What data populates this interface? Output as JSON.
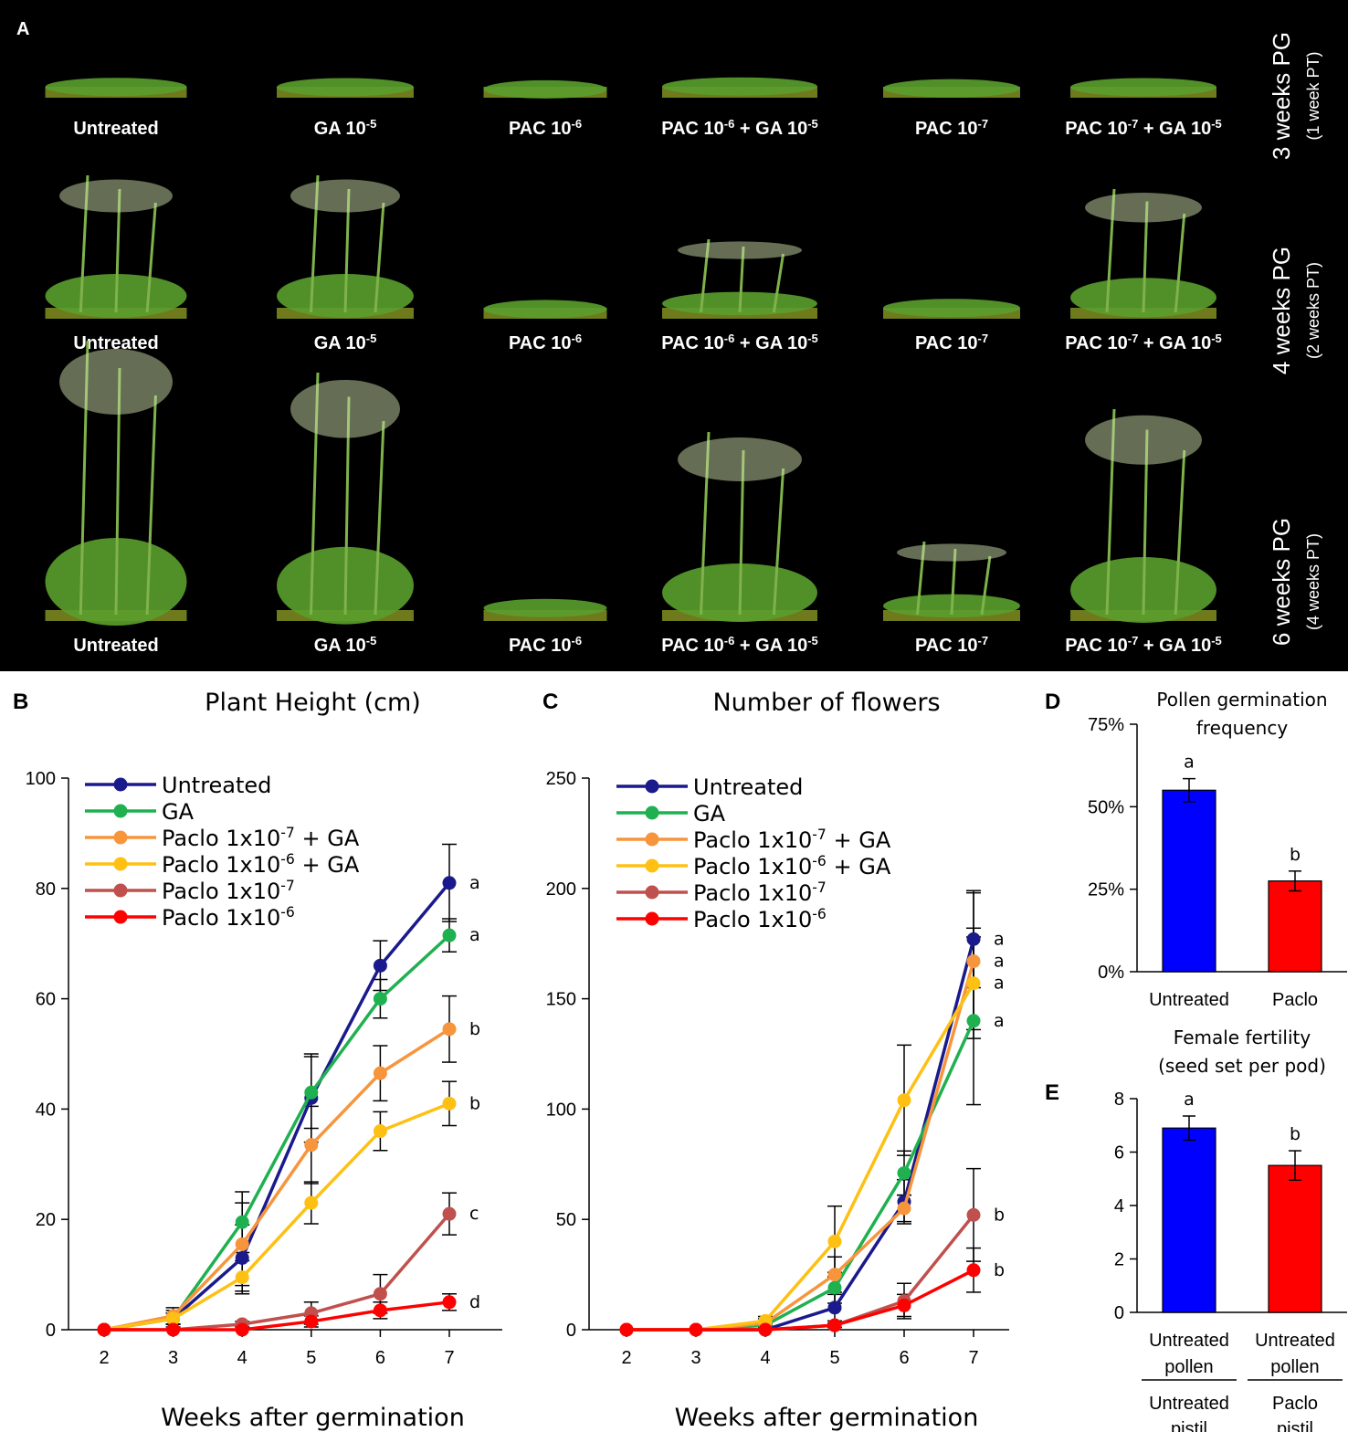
{
  "panel_a": {
    "letter": "A",
    "rows": [
      {
        "label": "3 weeks PG",
        "sub": "(1 week PT)",
        "items": [
          {
            "base": "Untreated"
          },
          {
            "base": "GA 10",
            "sup": "-5"
          },
          {
            "base": "PAC 10",
            "sup": "-6"
          },
          {
            "base": "PAC 10",
            "sup": "-6",
            "base2": " + GA 10",
            "sup2": "-5"
          },
          {
            "base": "PAC 10",
            "sup": "-7"
          },
          {
            "base": "PAC 10",
            "sup": "-7",
            "base2": " + GA 10",
            "sup2": "-5"
          }
        ]
      },
      {
        "label": "4 weeks PG",
        "sub": "(2 weeks PT)",
        "items": [
          {
            "base": "Untreated"
          },
          {
            "base": "GA 10",
            "sup": "-5"
          },
          {
            "base": "PAC 10",
            "sup": "-6"
          },
          {
            "base": "PAC 10",
            "sup": "-6",
            "base2": " + GA  10",
            "sup2": "-5"
          },
          {
            "base": "PAC 10",
            "sup": "-7"
          },
          {
            "base": "PAC 10",
            "sup": "-7",
            "base2": " + GA 10",
            "sup2": "-5"
          }
        ]
      },
      {
        "label": "6 weeks PG",
        "sub": "(4 weeks PT)",
        "items": [
          {
            "base": "Untreated"
          },
          {
            "base": "GA 10",
            "sup": "-5"
          },
          {
            "base": "PAC 10",
            "sup": "-6"
          },
          {
            "base": "PAC 10",
            "sup": "-6",
            "base2": " + GA 10",
            "sup2": "-5"
          },
          {
            "base": "PAC 10",
            "sup": "-7"
          },
          {
            "base": "PAC 10",
            "sup": "-7",
            "base2": " + GA 10",
            "sup2": "-5"
          }
        ]
      }
    ]
  },
  "colors": {
    "untreated": "#1a1a8c",
    "ga": "#1fb050",
    "paclo7ga": "#f7953d",
    "paclo6ga": "#fec013",
    "paclo7": "#c0504d",
    "paclo6": "#ff0000",
    "blue_bar": "#0000ff",
    "red_bar": "#ff0000",
    "plant": "#5a9e2e",
    "pot": "#6e7a1c"
  },
  "chart_data": [
    {
      "id": "B",
      "type": "line",
      "title": "Plant Height (cm)",
      "xlabel": "Weeks after germination",
      "ylabel": "",
      "x": [
        2,
        3,
        4,
        5,
        6,
        7
      ],
      "ylim": [
        0,
        100
      ],
      "yticks": [
        0,
        20,
        40,
        60,
        80,
        100
      ],
      "series": [
        {
          "key": "untreated",
          "name": "Untreated",
          "values": [
            0,
            2,
            13,
            42,
            66,
            81
          ],
          "err": [
            0,
            1,
            6,
            8,
            4.5,
            7
          ],
          "sig": "a"
        },
        {
          "key": "ga",
          "name": "GA",
          "values": [
            0,
            2,
            19.5,
            43,
            60,
            71.5
          ],
          "err": [
            0,
            1.5,
            5.5,
            6.5,
            3.5,
            3
          ],
          "sig": "a"
        },
        {
          "key": "paclo7ga",
          "name": "Paclo 1x10",
          "sup": "-7",
          "suffix": " + GA",
          "values": [
            0,
            2.5,
            15.5,
            33.5,
            46.5,
            54.5
          ],
          "err": [
            0,
            1.5,
            7.5,
            7,
            5,
            6
          ],
          "sig": "b"
        },
        {
          "key": "paclo6ga",
          "name": "Paclo 1x10",
          "sup": "-6",
          "suffix": " + GA",
          "values": [
            0,
            2,
            9.5,
            23,
            36,
            41
          ],
          "err": [
            0,
            1,
            3,
            3.8,
            3.5,
            4
          ],
          "sig": "b"
        },
        {
          "key": "paclo7",
          "name": "Paclo 1x10",
          "sup": "-7",
          "suffix": "",
          "values": [
            0,
            0,
            1,
            3,
            6.5,
            21
          ],
          "err": [
            0,
            0,
            0.5,
            2,
            3.5,
            3.8
          ],
          "sig": "c"
        },
        {
          "key": "paclo6",
          "name": "Paclo 1x10",
          "sup": "-6",
          "suffix": "",
          "values": [
            0,
            0,
            0,
            1.5,
            3.5,
            5
          ],
          "err": [
            0,
            0,
            0,
            1,
            1.5,
            1.5
          ],
          "sig": "d"
        }
      ]
    },
    {
      "id": "C",
      "type": "line",
      "title": "Number of flowers",
      "xlabel": "Weeks after germination",
      "ylabel": "",
      "x": [
        2,
        3,
        4,
        5,
        6,
        7
      ],
      "ylim": [
        0,
        250
      ],
      "yticks": [
        0,
        50,
        100,
        150,
        200,
        250
      ],
      "series": [
        {
          "key": "untreated",
          "name": "Untreated",
          "values": [
            0,
            0,
            0,
            10,
            58,
            177
          ],
          "err": [
            0,
            0,
            0,
            6,
            10,
            22
          ],
          "sig": "a"
        },
        {
          "key": "ga",
          "name": "GA",
          "values": [
            0,
            0,
            2,
            19,
            71,
            140
          ],
          "err": [
            0,
            0,
            1,
            7,
            10,
            38
          ],
          "sig": "a"
        },
        {
          "key": "paclo7ga",
          "name": "Paclo 1x10",
          "sup": "-7",
          "suffix": " + GA",
          "values": [
            0,
            0,
            3,
            25,
            55,
            167
          ],
          "err": [
            0,
            0,
            2,
            8,
            6,
            31
          ],
          "sig": "a"
        },
        {
          "key": "paclo6ga",
          "name": "Paclo 1x10",
          "sup": "-6",
          "suffix": " + GA",
          "values": [
            0,
            0,
            4,
            40,
            104,
            157
          ],
          "err": [
            0,
            0,
            2,
            16,
            25,
            25
          ],
          "sig": "a"
        },
        {
          "key": "paclo7",
          "name": "Paclo 1x10",
          "sup": "-7",
          "suffix": "",
          "values": [
            0,
            0,
            0,
            2,
            13,
            52
          ],
          "err": [
            0,
            0,
            0,
            1,
            8,
            21
          ],
          "sig": "b"
        },
        {
          "key": "paclo6",
          "name": "Paclo 1x10",
          "sup": "-6",
          "suffix": "",
          "values": [
            0,
            0,
            0,
            2,
            11,
            27
          ],
          "err": [
            0,
            0,
            0,
            1,
            5,
            10
          ],
          "sig": "b"
        }
      ]
    },
    {
      "id": "D",
      "type": "bar",
      "title": "Pollen germination",
      "title2": "frequency",
      "categories": [
        "Untreated",
        "Paclo"
      ],
      "values": [
        55,
        27.5
      ],
      "err": [
        3.5,
        3
      ],
      "sig": [
        "a",
        "b"
      ],
      "ylim": [
        0,
        75
      ],
      "yticks": [
        "0%",
        "25%",
        "50%",
        "75%"
      ],
      "ytick_values": [
        0,
        25,
        50,
        75
      ]
    },
    {
      "id": "E",
      "type": "bar",
      "title": "Female fertility",
      "title2": "(seed set per pod)",
      "categories": [
        "Untreated",
        "Untreated"
      ],
      "categories2": [
        "pollen",
        "pollen"
      ],
      "groups": [
        "Untreated",
        "Paclo"
      ],
      "groups2": [
        "pistil",
        "pistil"
      ],
      "values": [
        6.9,
        5.5
      ],
      "err": [
        0.45,
        0.55
      ],
      "sig": [
        "a",
        "b"
      ],
      "ylim": [
        0,
        8
      ],
      "yticks": [
        0,
        2,
        4,
        6,
        8
      ]
    }
  ]
}
